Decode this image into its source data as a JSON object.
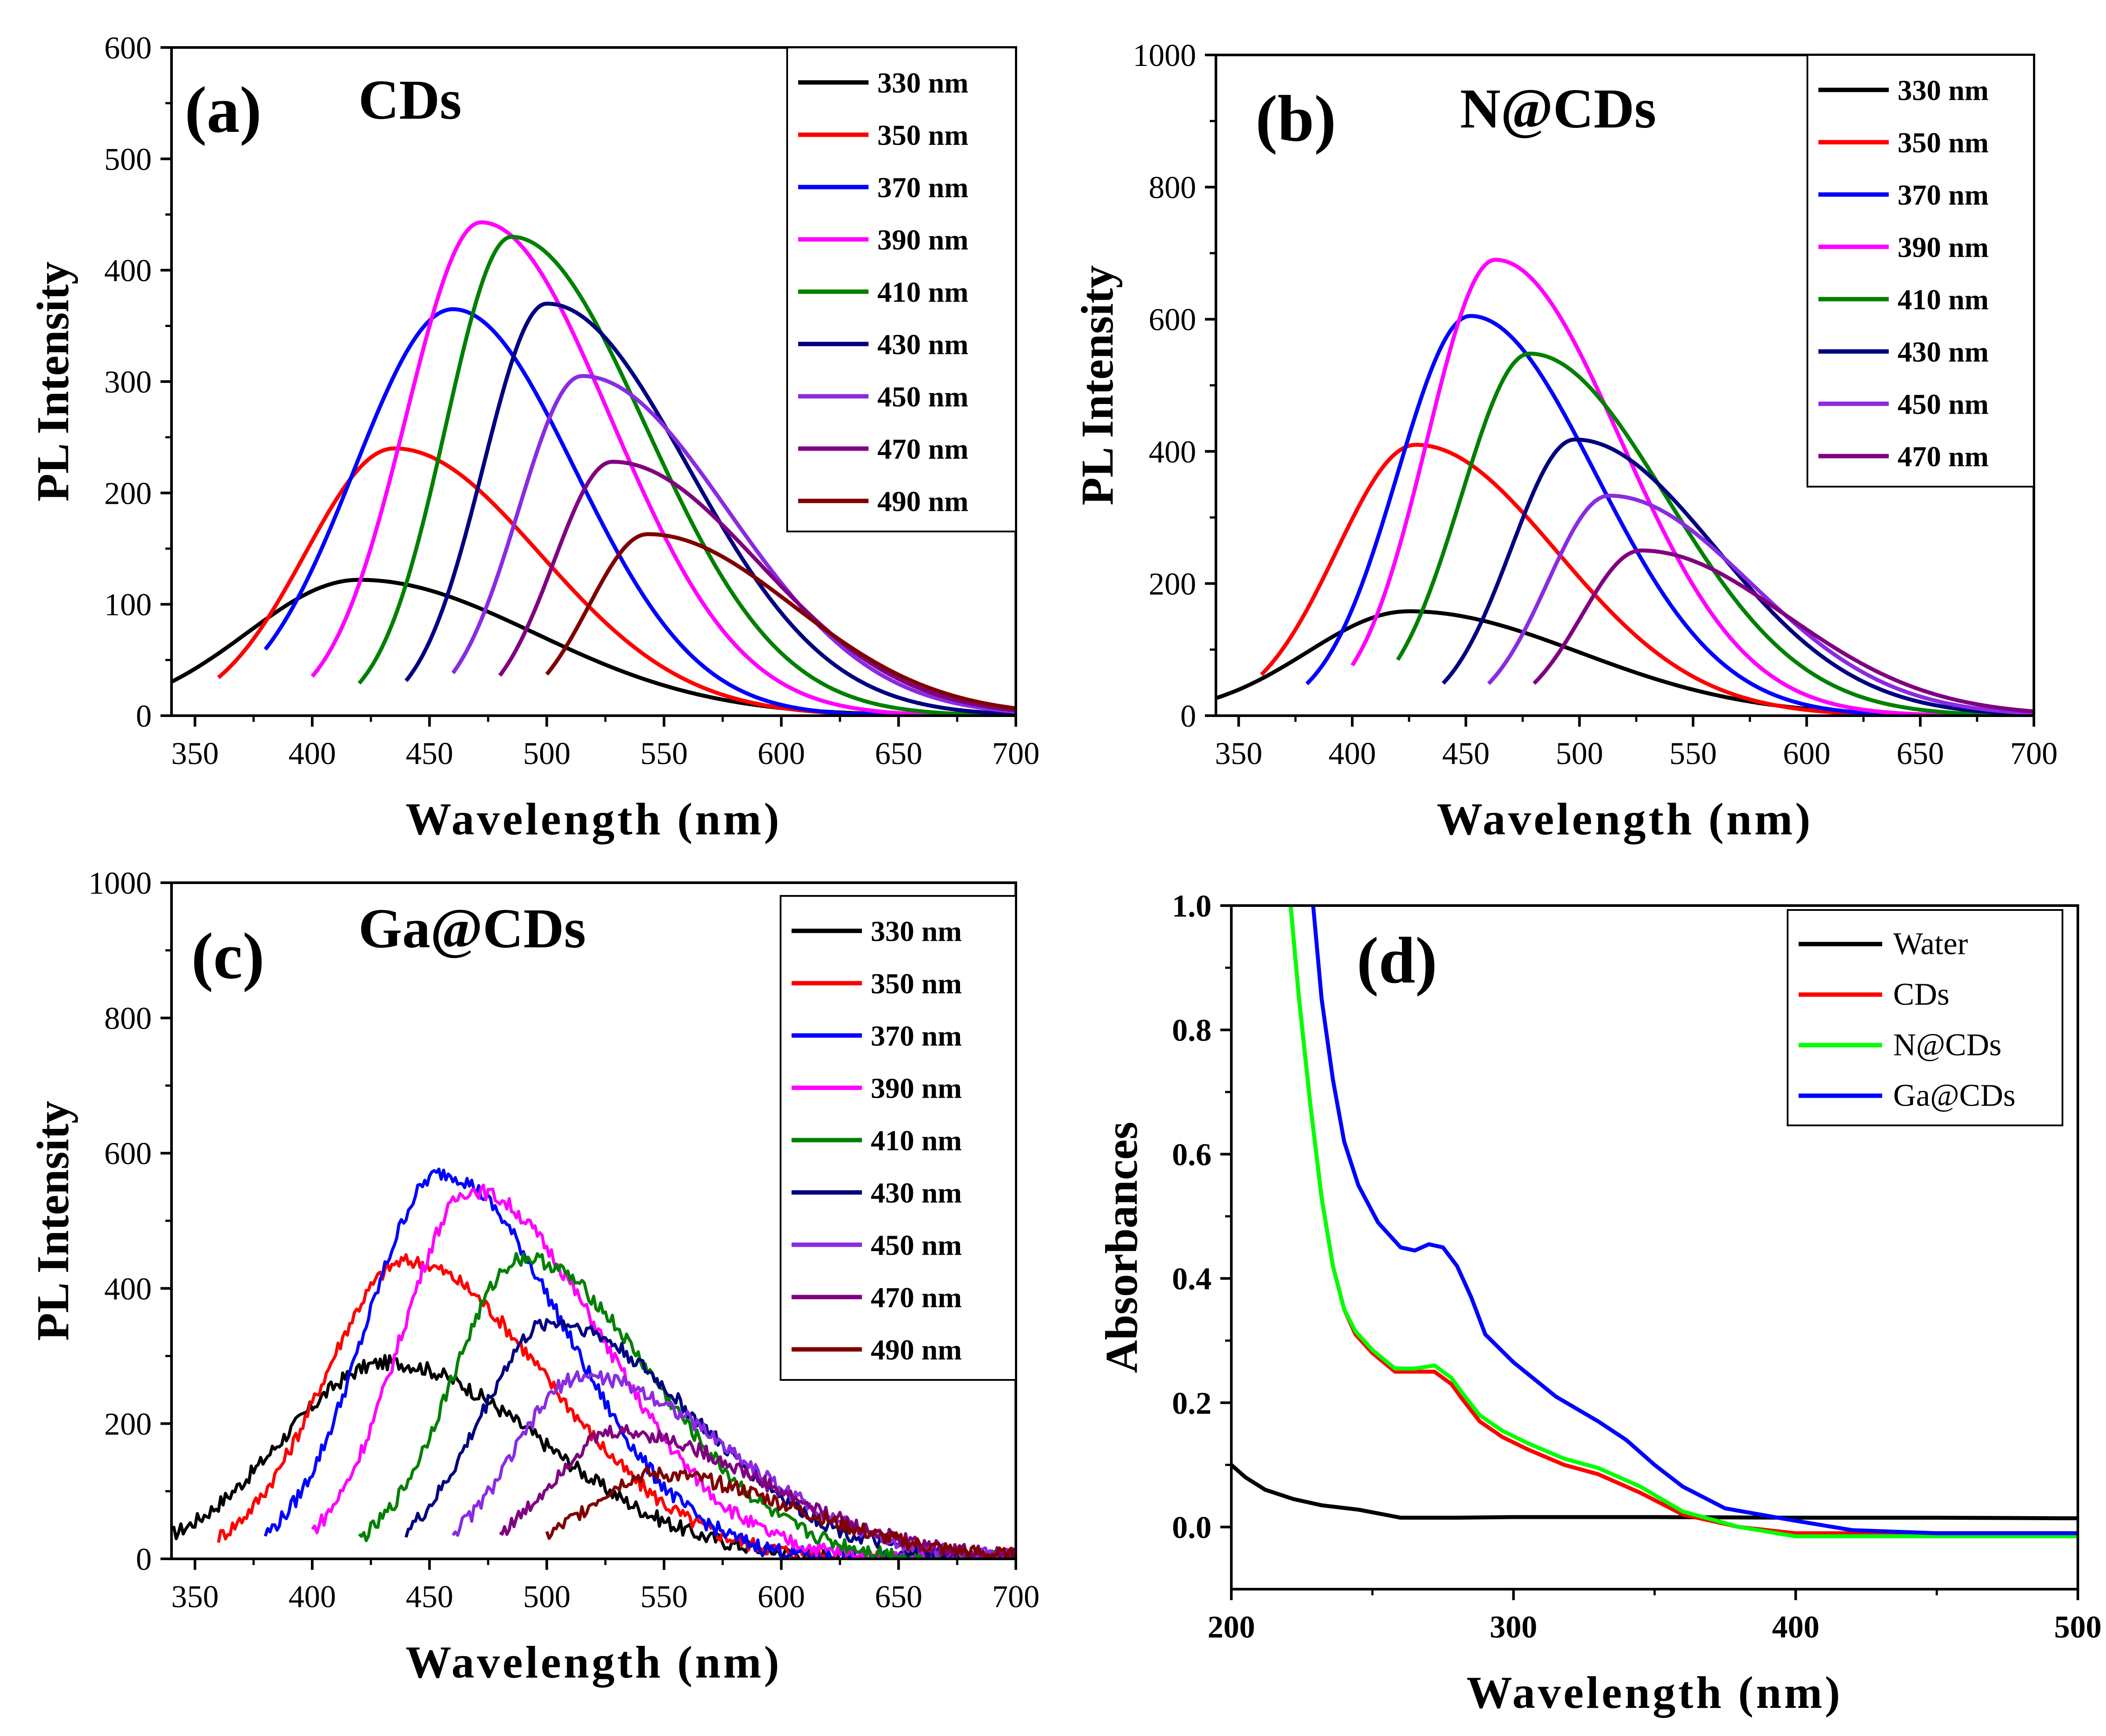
{
  "chart_data": [
    {
      "type": "line",
      "panel": "(a)",
      "title": "CDs",
      "xlabel": "Wavelength (nm)",
      "ylabel": "PL Intensity",
      "xlim": [
        340,
        700
      ],
      "ylim": [
        0,
        600
      ],
      "xticks": [
        350,
        400,
        450,
        500,
        550,
        600,
        650,
        700
      ],
      "yticks": [
        0,
        100,
        200,
        300,
        400,
        500,
        600
      ],
      "legend_position": "top-right",
      "series": [
        {
          "name": "330 nm",
          "color": "#000000",
          "start": 340,
          "peak_x": 420,
          "peak_y": 122,
          "wl": 48,
          "wr": 75,
          "edge": 5
        },
        {
          "name": "350 nm",
          "color": "#ff0000",
          "start": 360,
          "peak_x": 435,
          "peak_y": 240,
          "wl": 38,
          "wr": 62,
          "edge": 5
        },
        {
          "name": "370 nm",
          "color": "#0000ff",
          "start": 380,
          "peak_x": 460,
          "peak_y": 365,
          "wl": 42,
          "wr": 52,
          "edge": 5
        },
        {
          "name": "390 nm",
          "color": "#ff00ff",
          "start": 400,
          "peak_x": 472,
          "peak_y": 443,
          "wl": 32,
          "wr": 55,
          "edge": 3
        },
        {
          "name": "410 nm",
          "color": "#008000",
          "start": 420,
          "peak_x": 485,
          "peak_y": 430,
          "wl": 28,
          "wr": 57,
          "edge": 3
        },
        {
          "name": "430 nm",
          "color": "#000080",
          "start": 440,
          "peak_x": 500,
          "peak_y": 370,
          "wl": 27,
          "wr": 60,
          "edge": 3
        },
        {
          "name": "450 nm",
          "color": "#8a2be2",
          "start": 460,
          "peak_x": 515,
          "peak_y": 305,
          "wl": 27,
          "wr": 62,
          "edge": 3
        },
        {
          "name": "470 nm",
          "color": "#800080",
          "start": 480,
          "peak_x": 528,
          "peak_y": 228,
          "wl": 25,
          "wr": 62,
          "edge": 3
        },
        {
          "name": "490 nm",
          "color": "#800000",
          "start": 500,
          "peak_x": 543,
          "peak_y": 163,
          "wl": 25,
          "wr": 62,
          "edge": 3
        }
      ]
    },
    {
      "type": "line",
      "panel": "(b)",
      "title": "N@CDs",
      "xlabel": "Wavelength (nm)",
      "ylabel": "PL Intensity",
      "xlim": [
        340,
        700
      ],
      "ylim": [
        0,
        1000
      ],
      "xticks": [
        350,
        400,
        450,
        500,
        550,
        600,
        650,
        700
      ],
      "yticks": [
        0,
        200,
        400,
        600,
        800,
        1000
      ],
      "legend_position": "top-right",
      "series": [
        {
          "name": "330 nm",
          "color": "#000000",
          "start": 340,
          "peak_x": 425,
          "peak_y": 158,
          "wl": 45,
          "wr": 75,
          "edge": 5
        },
        {
          "name": "350 nm",
          "color": "#ff0000",
          "start": 360,
          "peak_x": 428,
          "peak_y": 410,
          "wl": 35,
          "wr": 62,
          "edge": 5
        },
        {
          "name": "370 nm",
          "color": "#0000ff",
          "start": 380,
          "peak_x": 452,
          "peak_y": 605,
          "wl": 32,
          "wr": 55,
          "edge": 5
        },
        {
          "name": "390 nm",
          "color": "#ff00ff",
          "start": 400,
          "peak_x": 463,
          "peak_y": 690,
          "wl": 30,
          "wr": 55,
          "edge": 5
        },
        {
          "name": "410 nm",
          "color": "#008000",
          "start": 420,
          "peak_x": 478,
          "peak_y": 548,
          "wl": 30,
          "wr": 60,
          "edge": 5
        },
        {
          "name": "430 nm",
          "color": "#000080",
          "start": 440,
          "peak_x": 498,
          "peak_y": 418,
          "wl": 28,
          "wr": 62,
          "edge": 5
        },
        {
          "name": "450 nm",
          "color": "#8a2be2",
          "start": 460,
          "peak_x": 513,
          "peak_y": 333,
          "wl": 27,
          "wr": 62,
          "edge": 5
        },
        {
          "name": "470 nm",
          "color": "#800080",
          "start": 480,
          "peak_x": 527,
          "peak_y": 250,
          "wl": 26,
          "wr": 64,
          "edge": 5
        }
      ]
    },
    {
      "type": "line",
      "panel": "(c)",
      "title": "Ga@CDs",
      "xlabel": "Wavelength (nm)",
      "ylabel": "PL Intensity",
      "xlim": [
        340,
        700
      ],
      "ylim": [
        0,
        1000
      ],
      "xticks": [
        350,
        400,
        450,
        500,
        550,
        600,
        650,
        700
      ],
      "yticks": [
        0,
        200,
        400,
        600,
        800,
        1000
      ],
      "legend_position": "top-right",
      "series": [
        {
          "name": "330 nm",
          "color": "#000000",
          "start": 340,
          "peak_x": 432,
          "peak_y": 290,
          "wl": 45,
          "wr": 65,
          "edge": 5
        },
        {
          "name": "350 nm",
          "color": "#ff0000",
          "start": 360,
          "peak_x": 440,
          "peak_y": 440,
          "wl": 35,
          "wr": 60,
          "edge": 5
        },
        {
          "name": "370 nm",
          "color": "#0000ff",
          "start": 380,
          "peak_x": 455,
          "peak_y": 570,
          "wl": 32,
          "wr": 52,
          "edge": 5
        },
        {
          "name": "390 nm",
          "color": "#ff00ff",
          "start": 400,
          "peak_x": 468,
          "peak_y": 545,
          "wl": 30,
          "wr": 55,
          "edge": 5
        },
        {
          "name": "410 nm",
          "color": "#008000",
          "start": 420,
          "peak_x": 490,
          "peak_y": 445,
          "wl": 30,
          "wr": 55,
          "edge": 5
        },
        {
          "name": "430 nm",
          "color": "#000080",
          "start": 440,
          "peak_x": 502,
          "peak_y": 350,
          "wl": 30,
          "wr": 60,
          "edge": 5
        },
        {
          "name": "450 nm",
          "color": "#8a2be2",
          "start": 460,
          "peak_x": 515,
          "peak_y": 270,
          "wl": 28,
          "wr": 62,
          "edge": 5
        },
        {
          "name": "470 nm",
          "color": "#800080",
          "start": 480,
          "peak_x": 530,
          "peak_y": 188,
          "wl": 28,
          "wr": 62,
          "edge": 5
        },
        {
          "name": "490 nm",
          "color": "#800000",
          "start": 500,
          "peak_x": 545,
          "peak_y": 125,
          "wl": 28,
          "wr": 60,
          "edge": 5
        }
      ]
    },
    {
      "type": "line",
      "panel": "(d)",
      "title": "",
      "xlabel": "Wavelength (nm)",
      "ylabel": "Absorbances",
      "xlim": [
        200,
        500
      ],
      "ylim": [
        -0.1,
        1.0
      ],
      "xticks": [
        200,
        300,
        400,
        500
      ],
      "yticks": [
        0.0,
        0.2,
        0.4,
        0.6,
        0.8,
        1.0
      ],
      "ytick_labels": [
        "0.0",
        "0.2",
        "0.4",
        "0.6",
        "0.8",
        "1.0"
      ],
      "legend_position": "top-right",
      "series": [
        {
          "name": "Water",
          "color": "#000000",
          "points": [
            [
              200,
              0.1
            ],
            [
              205,
              0.08
            ],
            [
              212,
              0.06
            ],
            [
              222,
              0.045
            ],
            [
              232,
              0.035
            ],
            [
              245,
              0.028
            ],
            [
              260,
              0.015
            ],
            [
              280,
              0.015
            ],
            [
              300,
              0.016
            ],
            [
              350,
              0.016
            ],
            [
              400,
              0.015
            ],
            [
              450,
              0.015
            ],
            [
              500,
              0.014
            ]
          ]
        },
        {
          "name": "CDs",
          "color": "#ff0000",
          "points": [
            [
              221,
              1.0
            ],
            [
              224,
              0.85
            ],
            [
              228,
              0.68
            ],
            [
              232,
              0.53
            ],
            [
              236,
              0.42
            ],
            [
              240,
              0.35
            ],
            [
              244,
              0.31
            ],
            [
              250,
              0.28
            ],
            [
              258,
              0.25
            ],
            [
              265,
              0.25
            ],
            [
              272,
              0.25
            ],
            [
              278,
              0.23
            ],
            [
              282,
              0.205
            ],
            [
              288,
              0.17
            ],
            [
              296,
              0.145
            ],
            [
              305,
              0.125
            ],
            [
              318,
              0.1
            ],
            [
              330,
              0.085
            ],
            [
              345,
              0.055
            ],
            [
              360,
              0.02
            ],
            [
              380,
              0.0
            ],
            [
              400,
              -0.01
            ],
            [
              450,
              -0.01
            ],
            [
              500,
              -0.01
            ]
          ]
        },
        {
          "name": "N@CDs",
          "color": "#00ff00",
          "points": [
            [
              221,
              1.0
            ],
            [
              224,
              0.85
            ],
            [
              228,
              0.68
            ],
            [
              232,
              0.53
            ],
            [
              236,
              0.42
            ],
            [
              240,
              0.35
            ],
            [
              244,
              0.315
            ],
            [
              250,
              0.285
            ],
            [
              258,
              0.255
            ],
            [
              265,
              0.255
            ],
            [
              272,
              0.26
            ],
            [
              278,
              0.24
            ],
            [
              282,
              0.215
            ],
            [
              288,
              0.18
            ],
            [
              296,
              0.155
            ],
            [
              305,
              0.135
            ],
            [
              318,
              0.11
            ],
            [
              330,
              0.095
            ],
            [
              345,
              0.065
            ],
            [
              360,
              0.025
            ],
            [
              380,
              0.0
            ],
            [
              400,
              -0.015
            ],
            [
              450,
              -0.015
            ],
            [
              500,
              -0.015
            ]
          ]
        },
        {
          "name": "Ga@CDs",
          "color": "#0000ff",
          "points": [
            [
              229,
              1.0
            ],
            [
              232,
              0.85
            ],
            [
              236,
              0.72
            ],
            [
              240,
              0.62
            ],
            [
              245,
              0.55
            ],
            [
              252,
              0.49
            ],
            [
              260,
              0.45
            ],
            [
              265,
              0.445
            ],
            [
              270,
              0.455
            ],
            [
              275,
              0.45
            ],
            [
              280,
              0.42
            ],
            [
              285,
              0.37
            ],
            [
              290,
              0.31
            ],
            [
              300,
              0.265
            ],
            [
              315,
              0.21
            ],
            [
              330,
              0.17
            ],
            [
              340,
              0.14
            ],
            [
              350,
              0.1
            ],
            [
              360,
              0.065
            ],
            [
              375,
              0.03
            ],
            [
              400,
              0.01
            ],
            [
              420,
              -0.005
            ],
            [
              450,
              -0.01
            ],
            [
              500,
              -0.01
            ]
          ]
        }
      ]
    }
  ]
}
